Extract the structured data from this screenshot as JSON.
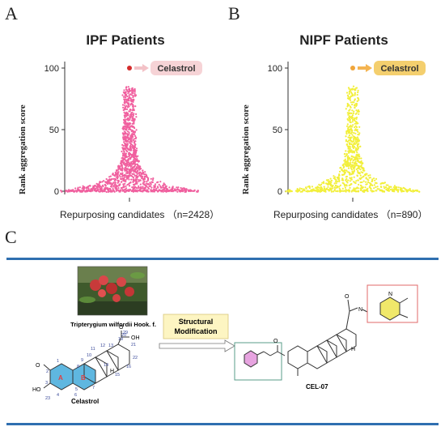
{
  "panels": {
    "A": {
      "label": "A",
      "title": "IPF Patients",
      "ylabel": "Rank aggregation score",
      "xlabel": "Repurposing candidates  （n=2428）",
      "highlight": "Celastrol",
      "dot_color": "#f0609f",
      "top_color": "#d42c2c",
      "tag_bg": "#f6d3d6",
      "arrow_color": "#f3c2c7"
    },
    "B": {
      "label": "B",
      "title": "NIPF Patients",
      "ylabel": "Rank aggregation score",
      "xlabel": "Repurposing candidates  （n=890）",
      "highlight": "Celastrol",
      "dot_color": "#f2ef3a",
      "top_color": "#f0a53a",
      "tag_bg": "#f4cf6e",
      "arrow_color": "#f4b451"
    }
  },
  "chart_data": [
    {
      "type": "scatter",
      "title": "IPF Patients",
      "xlabel": "Repurposing candidates  （n=2428）",
      "ylabel": "Rank aggregation score",
      "ylim": [
        0,
        100
      ],
      "yticks": [
        0,
        50,
        100
      ],
      "n": 2428,
      "highlight": {
        "name": "Celastrol",
        "y": 100
      }
    },
    {
      "type": "scatter",
      "title": "NIPF Patients",
      "xlabel": "Repurposing candidates  （n=890）",
      "ylabel": "Rank aggregation score",
      "ylim": [
        0,
        100
      ],
      "yticks": [
        0,
        50,
        100
      ],
      "n": 890,
      "highlight": {
        "name": "Celastrol",
        "y": 100
      }
    }
  ],
  "panelC": {
    "label": "C",
    "plant_name": "Tripterygium wilfordii Hook. f.",
    "box_text_1": "Structural",
    "box_text_2": "Modification",
    "compound_name": "Celastrol",
    "product_name": "CEL-07",
    "ring_labels": [
      "A",
      "B"
    ],
    "atom_numbers": [
      "1",
      "2",
      "3",
      "4",
      "5",
      "6",
      "7",
      "8",
      "9",
      "10",
      "11",
      "12",
      "13",
      "14",
      "15",
      "16",
      "19",
      "20",
      "21",
      "22",
      "23",
      "29"
    ],
    "atoms": {
      "o": "O",
      "oh": "OH",
      "ho": "HO",
      "h": "H",
      "n": "N",
      "nh": "N",
      "h2": "H"
    },
    "colors": {
      "accent": "#2f6fb0",
      "ring_fill": "#2a9fd6",
      "pyrazine_fill": "#f0e86a",
      "box_fill": "#fdf5c2",
      "green_box": "#5a9e8a",
      "red_box": "#e06868",
      "phenyl_fill": "#e7a4e0"
    }
  }
}
